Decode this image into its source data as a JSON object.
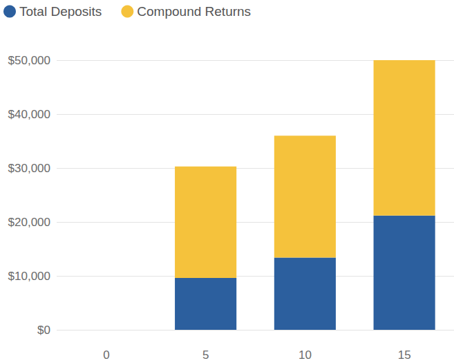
{
  "chart_data": {
    "type": "bar",
    "categories": [
      "0",
      "5",
      "10",
      "15"
    ],
    "series": [
      {
        "name": "Total Deposits",
        "color": "#2c5f9e",
        "values": [
          null,
          9600,
          13400,
          21200
        ]
      },
      {
        "name": "Compound Returns",
        "color": "#f5c23c",
        "values": [
          null,
          20700,
          22600,
          28800
        ]
      }
    ],
    "stacked": true,
    "ylim": [
      0,
      50000
    ],
    "yticks": [
      {
        "value": 0,
        "label": "$0"
      },
      {
        "value": 10000,
        "label": "$10,000"
      },
      {
        "value": 20000,
        "label": "$20,000"
      },
      {
        "value": 30000,
        "label": "$30,000"
      },
      {
        "value": 40000,
        "label": "$40,000"
      },
      {
        "value": 50000,
        "label": "$50,000"
      }
    ],
    "grid": true,
    "legend": "top-left"
  }
}
